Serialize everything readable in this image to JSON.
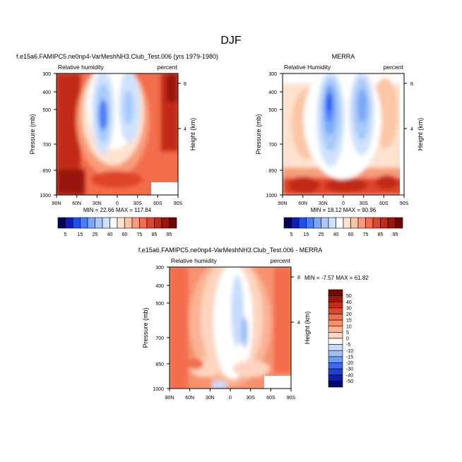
{
  "figure_title": "DJF",
  "chart_data": [
    {
      "type": "heatmap",
      "title": "f.e15a6.FAMIPC5.ne0np4-VarMeshNH3.Club_Test.006 (yrs 1979-1980)",
      "left_subtitle": "Relative humidity",
      "right_subtitle": "percent",
      "xlabel": "",
      "ylabel": "Pressure (mb)",
      "y2label": "Height (km)",
      "x_ticks": [
        "90N",
        "60N",
        "30N",
        "0",
        "30S",
        "60S",
        "90S"
      ],
      "y_ticks": [
        "300",
        "400",
        "500",
        "700",
        "850",
        "1000"
      ],
      "y2_ticks": [
        "8",
        "4"
      ],
      "xlim": [
        90,
        -90
      ],
      "ylim": [
        1000,
        300
      ],
      "stats_text": "MIN = 22.66  MAX = 117.84",
      "min": 22.66,
      "max": 117.84
    },
    {
      "type": "heatmap",
      "title": "MERRA",
      "left_subtitle": "Relative Humidity",
      "right_subtitle": "percent",
      "xlabel": "",
      "ylabel": "Pressure (mb)",
      "y2label": "Height (km)",
      "x_ticks": [
        "90N",
        "60N",
        "30N",
        "0",
        "30S",
        "60S",
        "90S"
      ],
      "y_ticks": [
        "300",
        "400",
        "500",
        "700",
        "850",
        "1000"
      ],
      "y2_ticks": [
        "8",
        "4"
      ],
      "xlim": [
        90,
        -90
      ],
      "ylim": [
        1000,
        300
      ],
      "stats_text": "MIN = 18.12  MAX = 90.96",
      "min": 18.12,
      "max": 90.96
    },
    {
      "type": "heatmap",
      "title": "f.e15a6.FAMIPC5.ne0np4-VarMeshNH3.Club_Test.006 - MERRA",
      "left_subtitle": "Relative humidity",
      "right_subtitle": "percent",
      "xlabel": "",
      "ylabel": "Pressure (mb)",
      "y2label": "Height (km)",
      "x_ticks": [
        "90N",
        "60N",
        "30N",
        "0",
        "30S",
        "60S",
        "90S"
      ],
      "y_ticks": [
        "300",
        "400",
        "500",
        "700",
        "850",
        "1000"
      ],
      "y2_ticks": [
        "8",
        "4"
      ],
      "xlim": [
        90,
        -90
      ],
      "ylim": [
        1000,
        300
      ],
      "stats_text": "MIN = -7.57  MAX = 61.82",
      "min": -7.57,
      "max": 61.82
    }
  ],
  "colorbar_rh": {
    "labels": [
      "5",
      "15",
      "25",
      "40",
      "60",
      "75",
      "85",
      "95"
    ],
    "colors": [
      "#04045e",
      "#0a1fc4",
      "#1f4ef0",
      "#4a7ef6",
      "#7aa8f8",
      "#a7c9fb",
      "#cfe2fd",
      "#ffffff",
      "#fde2cf",
      "#fbc6a6",
      "#f89b78",
      "#f26d4c",
      "#e0452b",
      "#c12a16",
      "#9a150b",
      "#6e0805"
    ]
  },
  "colorbar_diff": {
    "labels": [
      "50",
      "40",
      "30",
      "20",
      "15",
      "10",
      "5",
      "0",
      "-5",
      "-10",
      "-15",
      "-20",
      "-30",
      "-40",
      "-50"
    ],
    "colors": [
      "#7a0903",
      "#a0160b",
      "#c52a18",
      "#e0452b",
      "#f26d4c",
      "#f8916e",
      "#fbb394",
      "#fdd5bf",
      "#ffffff",
      "#c7dcfc",
      "#9fc0fa",
      "#6d9bf5",
      "#3e6cf0",
      "#1f3fd6",
      "#0c1fa8",
      "#04066a"
    ]
  }
}
